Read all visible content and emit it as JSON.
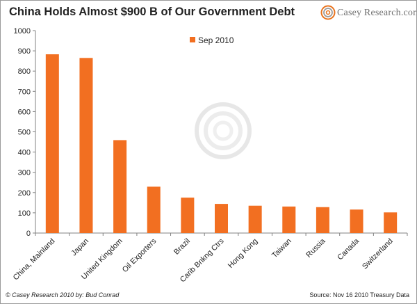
{
  "header": {
    "title": "China Holds Almost $900 B of Our Government Debt",
    "logo_text": "Casey Research.com"
  },
  "footer": {
    "credit": "© Casey Research 2010 by: Bud Conrad",
    "source": "Source: Nov 16 2010 Treasury Data"
  },
  "colors": {
    "bar": "#f26f21",
    "accent_logo": "#e8731e"
  },
  "chart_data": {
    "type": "bar",
    "title": "China Holds Almost $900 B of Our Government Debt",
    "xlabel": "",
    "ylabel": "",
    "ylim": [
      0,
      1000
    ],
    "ytick_step": 100,
    "grid": false,
    "legend_position": "top-center",
    "categories": [
      "China, Mainland",
      "Japan",
      "United Kingdom",
      "Oil Exporters",
      "Brazil",
      "Carib Bnkng Ctrs",
      "Hong Kong",
      "Taiwan",
      "Russia",
      "Canada",
      "Switzerland"
    ],
    "series": [
      {
        "name": "Sep 2010",
        "values": [
          883,
          865,
          459,
          229,
          175,
          144,
          135,
          131,
          128,
          116,
          102
        ]
      }
    ]
  }
}
